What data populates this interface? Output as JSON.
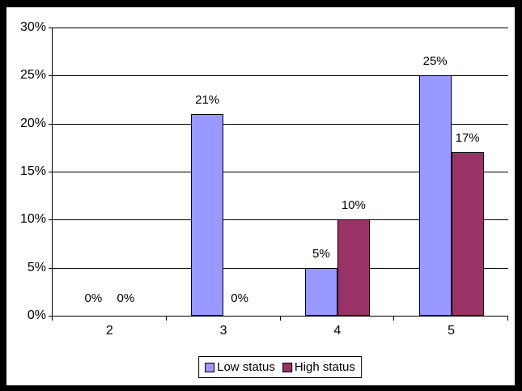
{
  "chart_data": {
    "type": "bar",
    "categories": [
      "2",
      "3",
      "4",
      "5"
    ],
    "series": [
      {
        "name": "Low status",
        "color": "#9999FF",
        "values": [
          0,
          21,
          5,
          25
        ],
        "labels": [
          "0%",
          "21%",
          "5%",
          "25%"
        ]
      },
      {
        "name": "High status",
        "color": "#993366",
        "values": [
          0,
          0,
          10,
          17
        ],
        "labels": [
          "0%",
          "0%",
          "10%",
          "17%"
        ]
      }
    ],
    "ylim": [
      0,
      30
    ],
    "ytick_step": 5,
    "ytick_labels": [
      "0%",
      "5%",
      "10%",
      "15%",
      "20%",
      "25%",
      "30%"
    ],
    "grid": "horizontal",
    "legend_position": "bottom-center",
    "colors": {
      "frame_border": "#000000",
      "background": "#FFFFFF",
      "gridline": "#000000",
      "axis": "#000000",
      "bar_outline": "#000000",
      "text": "#000000"
    }
  }
}
